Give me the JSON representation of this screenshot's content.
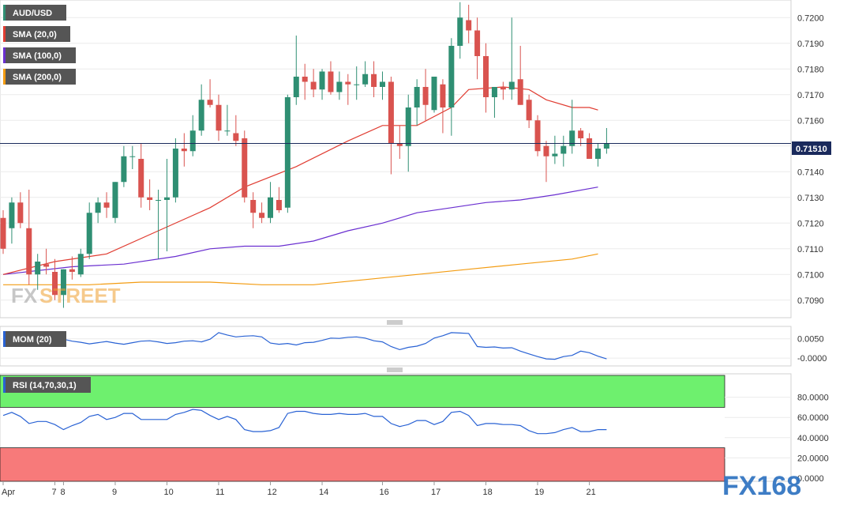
{
  "chart_data": {
    "type": "candlestick",
    "symbol": "AUD/USD",
    "last_price_label": "0.71510",
    "last_price": 0.7151,
    "colors": {
      "up": "#2f8f73",
      "down": "#d9534f",
      "sma20": "#e03c31",
      "sma100": "#6a2fd0",
      "sma200": "#f39c12",
      "mom": "#2962d4",
      "rsi": "#2962d4",
      "rsi_over": "#6ef06e",
      "rsi_under": "#f77a7a",
      "last_line": "#1a2a5c"
    },
    "legend": {
      "symbol": "AUD/USD",
      "sma20": "SMA (20,0)",
      "sma100": "SMA (100,0)",
      "sma200": "SMA (200,0)",
      "mom": "MOM (20)",
      "rsi": "RSI (14,70,30,1)"
    },
    "price_axis": {
      "min": 0.7085,
      "max": 0.7205,
      "ticks": [
        "0.7090",
        "0.7100",
        "0.7110",
        "0.7120",
        "0.7130",
        "0.7140",
        "0.7150",
        "0.7160",
        "0.7170",
        "0.7180",
        "0.7190",
        "0.7200"
      ]
    },
    "mom_axis": {
      "ticks": [
        "0.0050",
        "-0.0000"
      ]
    },
    "rsi_axis": {
      "min": 0,
      "max": 100,
      "ticks": [
        "0.0000",
        "20.0000",
        "40.0000",
        "60.0000",
        "80.0000"
      ]
    },
    "x_labels": [
      {
        "label": "Apr",
        "i": 0
      },
      {
        "label": "7",
        "i": 6
      },
      {
        "label": "8",
        "i": 7
      },
      {
        "label": "9",
        "i": 13
      },
      {
        "label": "10",
        "i": 19
      },
      {
        "label": "11",
        "i": 25
      },
      {
        "label": "12",
        "i": 31
      },
      {
        "label": "14",
        "i": 37
      },
      {
        "label": "16",
        "i": 44
      },
      {
        "label": "17",
        "i": 50
      },
      {
        "label": "18",
        "i": 56
      },
      {
        "label": "19",
        "i": 62
      },
      {
        "label": "21",
        "i": 68
      }
    ],
    "candles": [
      [
        0.7122,
        0.7125,
        0.7108,
        0.711
      ],
      [
        0.7118,
        0.713,
        0.7112,
        0.7128
      ],
      [
        0.7128,
        0.7132,
        0.7118,
        0.712
      ],
      [
        0.7118,
        0.7133,
        0.7096,
        0.71
      ],
      [
        0.71,
        0.7108,
        0.7094,
        0.7105
      ],
      [
        0.7104,
        0.711,
        0.71,
        0.7103
      ],
      [
        0.7101,
        0.7106,
        0.709,
        0.7092
      ],
      [
        0.7092,
        0.7102,
        0.7087,
        0.7102
      ],
      [
        0.7102,
        0.7107,
        0.7098,
        0.7101
      ],
      [
        0.71,
        0.711,
        0.7099,
        0.7108
      ],
      [
        0.7108,
        0.7128,
        0.7106,
        0.7124
      ],
      [
        0.7124,
        0.713,
        0.712,
        0.7128
      ],
      [
        0.7128,
        0.7132,
        0.7122,
        0.7126
      ],
      [
        0.7122,
        0.7136,
        0.712,
        0.7136
      ],
      [
        0.7136,
        0.715,
        0.7134,
        0.7146
      ],
      [
        0.7146,
        0.715,
        0.7141,
        0.7146
      ],
      [
        0.7145,
        0.7151,
        0.7126,
        0.713
      ],
      [
        0.713,
        0.7137,
        0.7125,
        0.7129
      ],
      [
        0.7129,
        0.7133,
        0.7106,
        0.7129
      ],
      [
        0.7129,
        0.7145,
        0.7109,
        0.713
      ],
      [
        0.713,
        0.7153,
        0.7128,
        0.7149
      ],
      [
        0.7149,
        0.7155,
        0.7142,
        0.7148
      ],
      [
        0.7148,
        0.7162,
        0.7146,
        0.7156
      ],
      [
        0.7156,
        0.7174,
        0.7154,
        0.7168
      ],
      [
        0.7168,
        0.7176,
        0.7165,
        0.7166
      ],
      [
        0.7166,
        0.717,
        0.7152,
        0.7156
      ],
      [
        0.7156,
        0.7166,
        0.7154,
        0.7156
      ],
      [
        0.7155,
        0.7162,
        0.715,
        0.7152
      ],
      [
        0.7153,
        0.7156,
        0.7128,
        0.713
      ],
      [
        0.7129,
        0.7132,
        0.7118,
        0.7124
      ],
      [
        0.7124,
        0.7128,
        0.712,
        0.7122
      ],
      [
        0.7122,
        0.7136,
        0.712,
        0.713
      ],
      [
        0.7129,
        0.7134,
        0.7124,
        0.7125
      ],
      [
        0.7126,
        0.717,
        0.7124,
        0.7169
      ],
      [
        0.7169,
        0.7193,
        0.7166,
        0.7177
      ],
      [
        0.7177,
        0.7182,
        0.7168,
        0.7175
      ],
      [
        0.7175,
        0.718,
        0.7169,
        0.7172
      ],
      [
        0.7172,
        0.718,
        0.7168,
        0.7179
      ],
      [
        0.7179,
        0.7183,
        0.717,
        0.7171
      ],
      [
        0.7171,
        0.7179,
        0.7168,
        0.7175
      ],
      [
        0.7175,
        0.7178,
        0.7166,
        0.7174
      ],
      [
        0.7174,
        0.7181,
        0.7168,
        0.7174
      ],
      [
        0.7174,
        0.7183,
        0.7173,
        0.7178
      ],
      [
        0.7178,
        0.7183,
        0.7169,
        0.7173
      ],
      [
        0.7173,
        0.7179,
        0.7168,
        0.7175
      ],
      [
        0.7175,
        0.7177,
        0.7139,
        0.7151
      ],
      [
        0.7151,
        0.7158,
        0.7145,
        0.715
      ],
      [
        0.715,
        0.717,
        0.714,
        0.7165
      ],
      [
        0.7165,
        0.7176,
        0.7158,
        0.7173
      ],
      [
        0.7173,
        0.718,
        0.716,
        0.7166
      ],
      [
        0.7164,
        0.7177,
        0.7163,
        0.7177
      ],
      [
        0.7174,
        0.7176,
        0.7155,
        0.7165
      ],
      [
        0.7165,
        0.7192,
        0.7154,
        0.7189
      ],
      [
        0.7189,
        0.7206,
        0.7184,
        0.72
      ],
      [
        0.7199,
        0.7205,
        0.719,
        0.7195
      ],
      [
        0.7195,
        0.72,
        0.7176,
        0.7185
      ],
      [
        0.7185,
        0.719,
        0.7163,
        0.7169
      ],
      [
        0.7169,
        0.7173,
        0.7161,
        0.7173
      ],
      [
        0.7173,
        0.7175,
        0.7168,
        0.7172
      ],
      [
        0.7172,
        0.72,
        0.7168,
        0.7175
      ],
      [
        0.7176,
        0.7189,
        0.7166,
        0.7166
      ],
      [
        0.7168,
        0.717,
        0.7157,
        0.716
      ],
      [
        0.716,
        0.7162,
        0.7146,
        0.7148
      ],
      [
        0.715,
        0.7152,
        0.7136,
        0.7146
      ],
      [
        0.7146,
        0.7154,
        0.7143,
        0.7147
      ],
      [
        0.7147,
        0.7154,
        0.7142,
        0.715
      ],
      [
        0.715,
        0.7168,
        0.7147,
        0.7156
      ],
      [
        0.7156,
        0.7157,
        0.715,
        0.7153
      ],
      [
        0.7153,
        0.7155,
        0.7145,
        0.7145
      ],
      [
        0.7145,
        0.7151,
        0.7142,
        0.7149
      ],
      [
        0.7149,
        0.7157,
        0.7147,
        0.7151
      ]
    ],
    "sma20": [
      [
        0,
        0.71
      ],
      [
        6,
        0.7105
      ],
      [
        12,
        0.7108
      ],
      [
        18,
        0.7117
      ],
      [
        24,
        0.7126
      ],
      [
        28,
        0.7134
      ],
      [
        34,
        0.7142
      ],
      [
        40,
        0.7152
      ],
      [
        44,
        0.7158
      ],
      [
        48,
        0.7158
      ],
      [
        52,
        0.7165
      ],
      [
        54,
        0.7172
      ],
      [
        58,
        0.7173
      ],
      [
        61,
        0.7172
      ],
      [
        63,
        0.7168
      ],
      [
        66,
        0.7165
      ],
      [
        68,
        0.7165
      ],
      [
        69,
        0.7164
      ]
    ],
    "sma100": [
      [
        0,
        0.71
      ],
      [
        8,
        0.7103
      ],
      [
        14,
        0.7104
      ],
      [
        20,
        0.7107
      ],
      [
        24,
        0.711
      ],
      [
        28,
        0.7111
      ],
      [
        32,
        0.7111
      ],
      [
        36,
        0.7113
      ],
      [
        40,
        0.7117
      ],
      [
        44,
        0.712
      ],
      [
        48,
        0.7124
      ],
      [
        52,
        0.7126
      ],
      [
        56,
        0.7128
      ],
      [
        60,
        0.7129
      ],
      [
        64,
        0.7131
      ],
      [
        69,
        0.7134
      ]
    ],
    "sma200": [
      [
        0,
        0.7096
      ],
      [
        10,
        0.7096
      ],
      [
        16,
        0.7097
      ],
      [
        24,
        0.7097
      ],
      [
        30,
        0.7096
      ],
      [
        36,
        0.7096
      ],
      [
        42,
        0.7098
      ],
      [
        48,
        0.71
      ],
      [
        54,
        0.7102
      ],
      [
        60,
        0.7104
      ],
      [
        66,
        0.7106
      ],
      [
        69,
        0.7108
      ]
    ],
    "mom": [
      0.0047,
      0.0052,
      0.0047,
      0.0046,
      0.0049,
      0.0052,
      0.005,
      0.0049,
      0.0044,
      0.0041,
      0.0037,
      0.004,
      0.0043,
      0.0039,
      0.0036,
      0.004,
      0.0044,
      0.0045,
      0.0042,
      0.0038,
      0.004,
      0.0044,
      0.0045,
      0.0042,
      0.0049,
      0.0066,
      0.006,
      0.0055,
      0.0057,
      0.0058,
      0.0055,
      0.0039,
      0.0036,
      0.0038,
      0.0034,
      0.004,
      0.0041,
      0.0046,
      0.0052,
      0.0051,
      0.0054,
      0.0055,
      0.0052,
      0.0045,
      0.0042,
      0.003,
      0.0022,
      0.0028,
      0.0031,
      0.0038,
      0.0052,
      0.0058,
      0.0066,
      0.0065,
      0.0064,
      0.003,
      0.0028,
      0.0029,
      0.0026,
      0.0027,
      0.0018,
      0.0011,
      0.0004,
      -0.0002,
      -0.0003,
      0.0004,
      0.0007,
      0.0018,
      0.0014,
      0.0005,
      -0.0002
    ],
    "rsi": [
      62,
      65,
      61,
      54,
      56,
      56,
      53,
      48,
      52,
      55,
      61,
      63,
      58,
      60,
      64,
      64,
      58,
      58,
      58,
      58,
      63,
      65,
      68,
      67,
      62,
      58,
      61,
      58,
      48,
      46,
      46,
      47,
      50,
      64,
      66,
      66,
      64,
      63,
      63,
      64,
      63,
      63,
      64,
      61,
      61,
      54,
      51,
      53,
      57,
      57,
      53,
      56,
      65,
      66,
      62,
      52,
      54,
      54,
      53,
      53,
      52,
      47,
      44,
      44,
      45,
      48,
      50,
      46,
      46,
      48,
      48
    ]
  }
}
